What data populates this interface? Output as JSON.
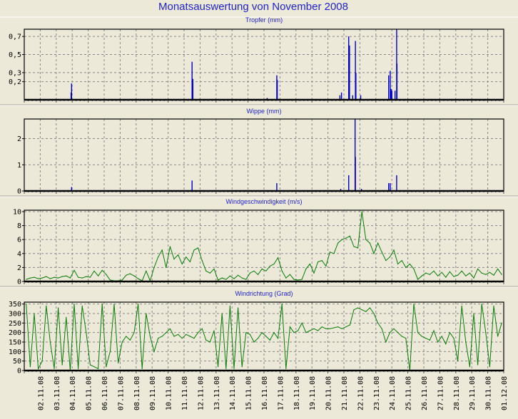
{
  "title": "Monatsauswertung von November 2008",
  "chart_data": [
    {
      "type": "bar",
      "title": "Tropfer (mm)",
      "xlabel": "",
      "ylabel": "",
      "x_unit": "day of November 2008 (fractional)",
      "ylim": [
        0,
        0.78
      ],
      "yticks": [
        0.2,
        0.3,
        0.5,
        0.7
      ],
      "ytick_labels": [
        "0,2",
        "0,3",
        "0,5",
        "0,7"
      ],
      "color": "#0000cc",
      "grid": true,
      "points": [
        [
          3.96,
          0.18
        ],
        [
          3.93,
          0.08
        ],
        [
          11.5,
          0.42
        ],
        [
          11.55,
          0.23
        ],
        [
          16.2,
          0.02
        ],
        [
          16.8,
          0.27
        ],
        [
          16.83,
          0.22
        ],
        [
          20.75,
          0.05
        ],
        [
          20.85,
          0.08
        ],
        [
          21.3,
          0.7
        ],
        [
          21.35,
          0.6
        ],
        [
          21.55,
          0.05
        ],
        [
          21.72,
          0.65
        ],
        [
          21.75,
          0.3
        ],
        [
          22.05,
          0.05
        ],
        [
          23.8,
          0.27
        ],
        [
          23.9,
          0.32
        ],
        [
          23.95,
          0.12
        ],
        [
          24.0,
          0.1
        ],
        [
          24.2,
          0.1
        ],
        [
          24.3,
          0.78
        ],
        [
          24.32,
          0.4
        ]
      ]
    },
    {
      "type": "bar",
      "title": "Wippe (mm)",
      "xlabel": "",
      "ylabel": "",
      "ylim": [
        0,
        2.75
      ],
      "yticks": [
        0,
        1,
        2
      ],
      "ytick_labels": [
        "0",
        "1",
        "2"
      ],
      "color": "#0000cc",
      "grid": true,
      "points": [
        [
          3.96,
          0.15
        ],
        [
          11.5,
          0.4
        ],
        [
          16.8,
          0.3
        ],
        [
          20.8,
          0.08
        ],
        [
          21.3,
          0.6
        ],
        [
          21.7,
          2.75
        ],
        [
          21.72,
          1.3
        ],
        [
          22.1,
          0.08
        ],
        [
          23.8,
          0.3
        ],
        [
          23.9,
          0.3
        ],
        [
          24.3,
          0.6
        ]
      ]
    },
    {
      "type": "line",
      "title": "Windgeschwindigkeit (m/s)",
      "xlabel": "",
      "ylabel": "",
      "ylim": [
        0,
        10.2
      ],
      "yticks": [
        0,
        2,
        4,
        6,
        8,
        10
      ],
      "ytick_labels": [
        "0",
        "2",
        "4",
        "6",
        "8",
        "10"
      ],
      "color": "#0a7a0a",
      "grid": true,
      "sample_interval_hours": 6,
      "values": [
        0.3,
        0.5,
        0.6,
        0.4,
        0.5,
        0.7,
        0.4,
        0.6,
        0.5,
        0.7,
        0.8,
        0.5,
        1.6,
        0.6,
        0.5,
        0.7,
        0.6,
        1.5,
        0.8,
        1.6,
        1.0,
        0.2,
        0.1,
        0.1,
        0.2,
        0.9,
        1.1,
        0.8,
        0.4,
        0.1,
        1.5,
        0.1,
        2.0,
        3.5,
        4.5,
        2.0,
        5.0,
        3.2,
        3.8,
        2.5,
        3.5,
        2.8,
        4.5,
        4.8,
        3.0,
        1.5,
        1.2,
        1.8,
        0.2,
        0.5,
        0.3,
        0.8,
        0.4,
        0.9,
        0.5,
        0.3,
        1.2,
        1.5,
        1.0,
        1.8,
        1.5,
        2.2,
        2.5,
        3.4,
        1.5,
        0.5,
        1.0,
        0.3,
        0.2,
        0.3,
        1.8,
        2.5,
        1.2,
        2.8,
        3.0,
        2.2,
        4.2,
        4.0,
        5.5,
        6.0,
        6.2,
        6.5,
        5.0,
        4.8,
        10.0,
        6.0,
        5.5,
        4.0,
        5.5,
        4.2,
        3.0,
        3.5,
        4.5,
        2.5,
        3.0,
        2.0,
        2.5,
        1.8,
        0.3,
        0.8,
        1.2,
        1.0,
        1.5,
        0.8,
        1.3,
        0.6,
        1.4,
        0.7,
        0.9,
        1.5,
        0.8,
        1.2,
        0.5,
        1.8,
        1.2,
        1.0,
        1.3,
        0.9,
        1.8,
        1.0
      ]
    },
    {
      "type": "line",
      "title": "Windrichtung (Grad)",
      "xlabel": "",
      "ylabel": "",
      "ylim": [
        0,
        360
      ],
      "yticks": [
        0,
        50,
        100,
        150,
        200,
        250,
        300,
        350
      ],
      "ytick_labels": [
        "0",
        "50",
        "100",
        "150",
        "200",
        "250",
        "300",
        "350"
      ],
      "color": "#0a7a0a",
      "grid": true,
      "sample_interval_hours": 6,
      "values": [
        350,
        20,
        300,
        10,
        50,
        340,
        150,
        10,
        330,
        30,
        280,
        0,
        350,
        10,
        340,
        200,
        30,
        20,
        10,
        350,
        20,
        100,
        350,
        40,
        150,
        180,
        160,
        200,
        350,
        10,
        300,
        180,
        100,
        170,
        180,
        200,
        220,
        180,
        190,
        170,
        190,
        180,
        170,
        200,
        220,
        160,
        150,
        210,
        20,
        300,
        10,
        340,
        10,
        330,
        20,
        200,
        190,
        150,
        170,
        200,
        180,
        160,
        200,
        170,
        350,
        10,
        230,
        200,
        210,
        250,
        200,
        210,
        220,
        210,
        230,
        220,
        220,
        225,
        230,
        220,
        230,
        240,
        320,
        330,
        320,
        310,
        330,
        300,
        250,
        220,
        150,
        200,
        220,
        200,
        180,
        170,
        0,
        350,
        200,
        180,
        170,
        160,
        210,
        150,
        180,
        140,
        200,
        170,
        50,
        340,
        150,
        20,
        300,
        30,
        350,
        200,
        20,
        340,
        180,
        250
      ],
      "x_tick_labels": [
        "02.11.08",
        "03.11.08",
        "04.11.08",
        "05.11.08",
        "06.11.08",
        "07.11.08",
        "08.11.08",
        "09.11.08",
        "10.11.08",
        "11.11.08",
        "12.11.08",
        "13.11.08",
        "14.11.08",
        "15.11.08",
        "16.11.08",
        "17.11.08",
        "18.11.08",
        "19.11.08",
        "20.11.08",
        "21.11.08",
        "22.11.08",
        "23.11.08",
        "24.11.08",
        "25.11.08",
        "26.11.08",
        "27.11.08",
        "28.11.08",
        "29.11.08",
        "30.11.08",
        "01.12.08"
      ]
    }
  ]
}
